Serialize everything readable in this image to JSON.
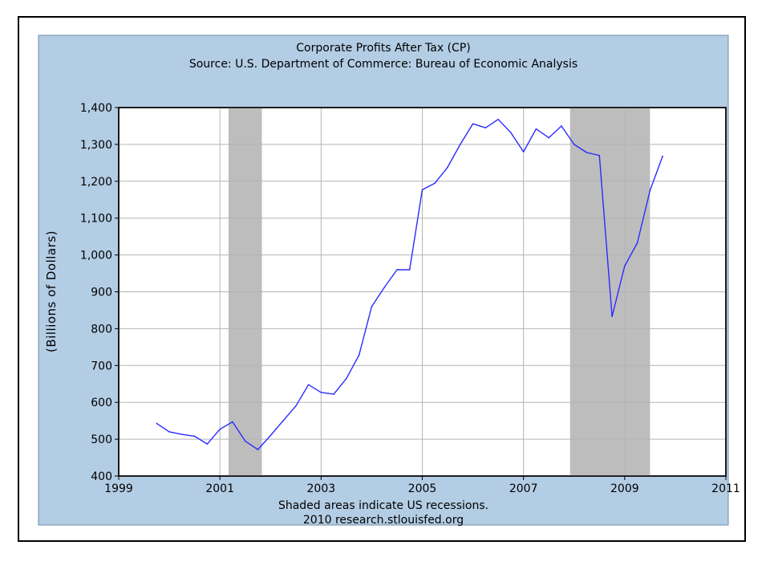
{
  "chart_data": {
    "type": "line",
    "title": "Corporate Profits After Tax (CP)",
    "subtitle": "Source: U.S. Department of Commerce: Bureau of Economic Analysis",
    "ylabel": "(Billions of Dollars)",
    "xlabel": "",
    "xlim": [
      1999,
      2011
    ],
    "ylim": [
      400,
      1400
    ],
    "x_ticks": [
      1999,
      2001,
      2003,
      2005,
      2007,
      2009,
      2011
    ],
    "x_tick_labels": [
      "1999",
      "2001",
      "2003",
      "2005",
      "2007",
      "2009",
      "2011"
    ],
    "y_ticks": [
      400,
      500,
      600,
      700,
      800,
      900,
      1000,
      1100,
      1200,
      1300,
      1400
    ],
    "y_tick_labels": [
      "400",
      "500",
      "600",
      "700",
      "800",
      "900",
      "1,000",
      "1,100",
      "1,200",
      "1,300",
      "1,400"
    ],
    "grid": true,
    "recessions": [
      [
        2001.17,
        2001.83
      ],
      [
        2007.92,
        2009.5
      ]
    ],
    "series": [
      {
        "color": "#2b2bff",
        "x": [
          1999.75,
          2000.0,
          2000.25,
          2000.5,
          2000.75,
          2001.0,
          2001.25,
          2001.5,
          2001.75,
          2002.0,
          2002.25,
          2002.5,
          2002.75,
          2003.0,
          2003.25,
          2003.5,
          2003.75,
          2004.0,
          2004.25,
          2004.5,
          2004.75,
          2005.0,
          2005.25,
          2005.5,
          2005.75,
          2006.0,
          2006.25,
          2006.5,
          2006.75,
          2007.0,
          2007.25,
          2007.5,
          2007.75,
          2008.0,
          2008.25,
          2008.5,
          2008.75,
          2009.0,
          2009.25,
          2009.5,
          2009.75
        ],
        "values": [
          543,
          520,
          513,
          508,
          487,
          527,
          547,
          495,
          472,
          510,
          550,
          590,
          648,
          627,
          622,
          665,
          728,
          860,
          912,
          960,
          960,
          1177,
          1195,
          1238,
          1300,
          1356,
          1345,
          1368,
          1332,
          1280,
          1342,
          1318,
          1350,
          1300,
          1278,
          1270,
          833,
          970,
          1033,
          1175,
          1268
        ]
      }
    ]
  },
  "footer": {
    "note": "Shaded areas indicate US recessions.",
    "source": "2010 research.stlouisfed.org"
  },
  "colors": {
    "panel": "#b3cde4",
    "plot_bg": "#ffffff",
    "grid": "#b4b4b4",
    "recession": "#bdbdbd",
    "line": "#2b2bff"
  }
}
